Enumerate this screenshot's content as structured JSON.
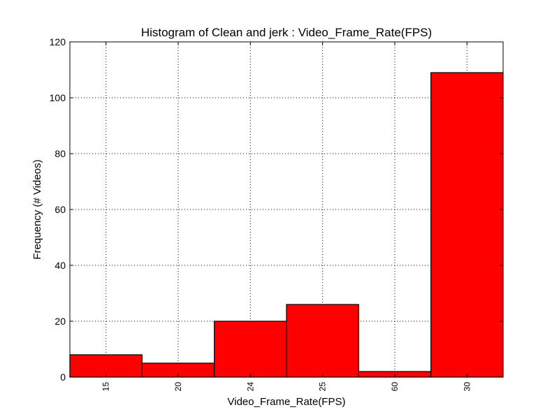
{
  "colors": {
    "bar_fill": "#ff0000",
    "bar_stroke": "#000000",
    "grid": "#000000",
    "background": "#ffffff"
  },
  "chart_data": {
    "type": "bar",
    "title": "Histogram of Clean and jerk : Video_Frame_Rate(FPS)",
    "xlabel": "Video_Frame_Rate(FPS)",
    "ylabel": "Frequency (# Videos)",
    "categories": [
      "15",
      "20",
      "24",
      "25",
      "60",
      "30"
    ],
    "values": [
      8,
      5,
      20,
      26,
      2,
      109
    ],
    "ylim": [
      0,
      120
    ],
    "yticks": [
      "0",
      "20",
      "40",
      "60",
      "80",
      "100",
      "120"
    ],
    "grid": true,
    "grid_style": "dotted",
    "xtick_rotation": "vertical",
    "legend": "none"
  }
}
